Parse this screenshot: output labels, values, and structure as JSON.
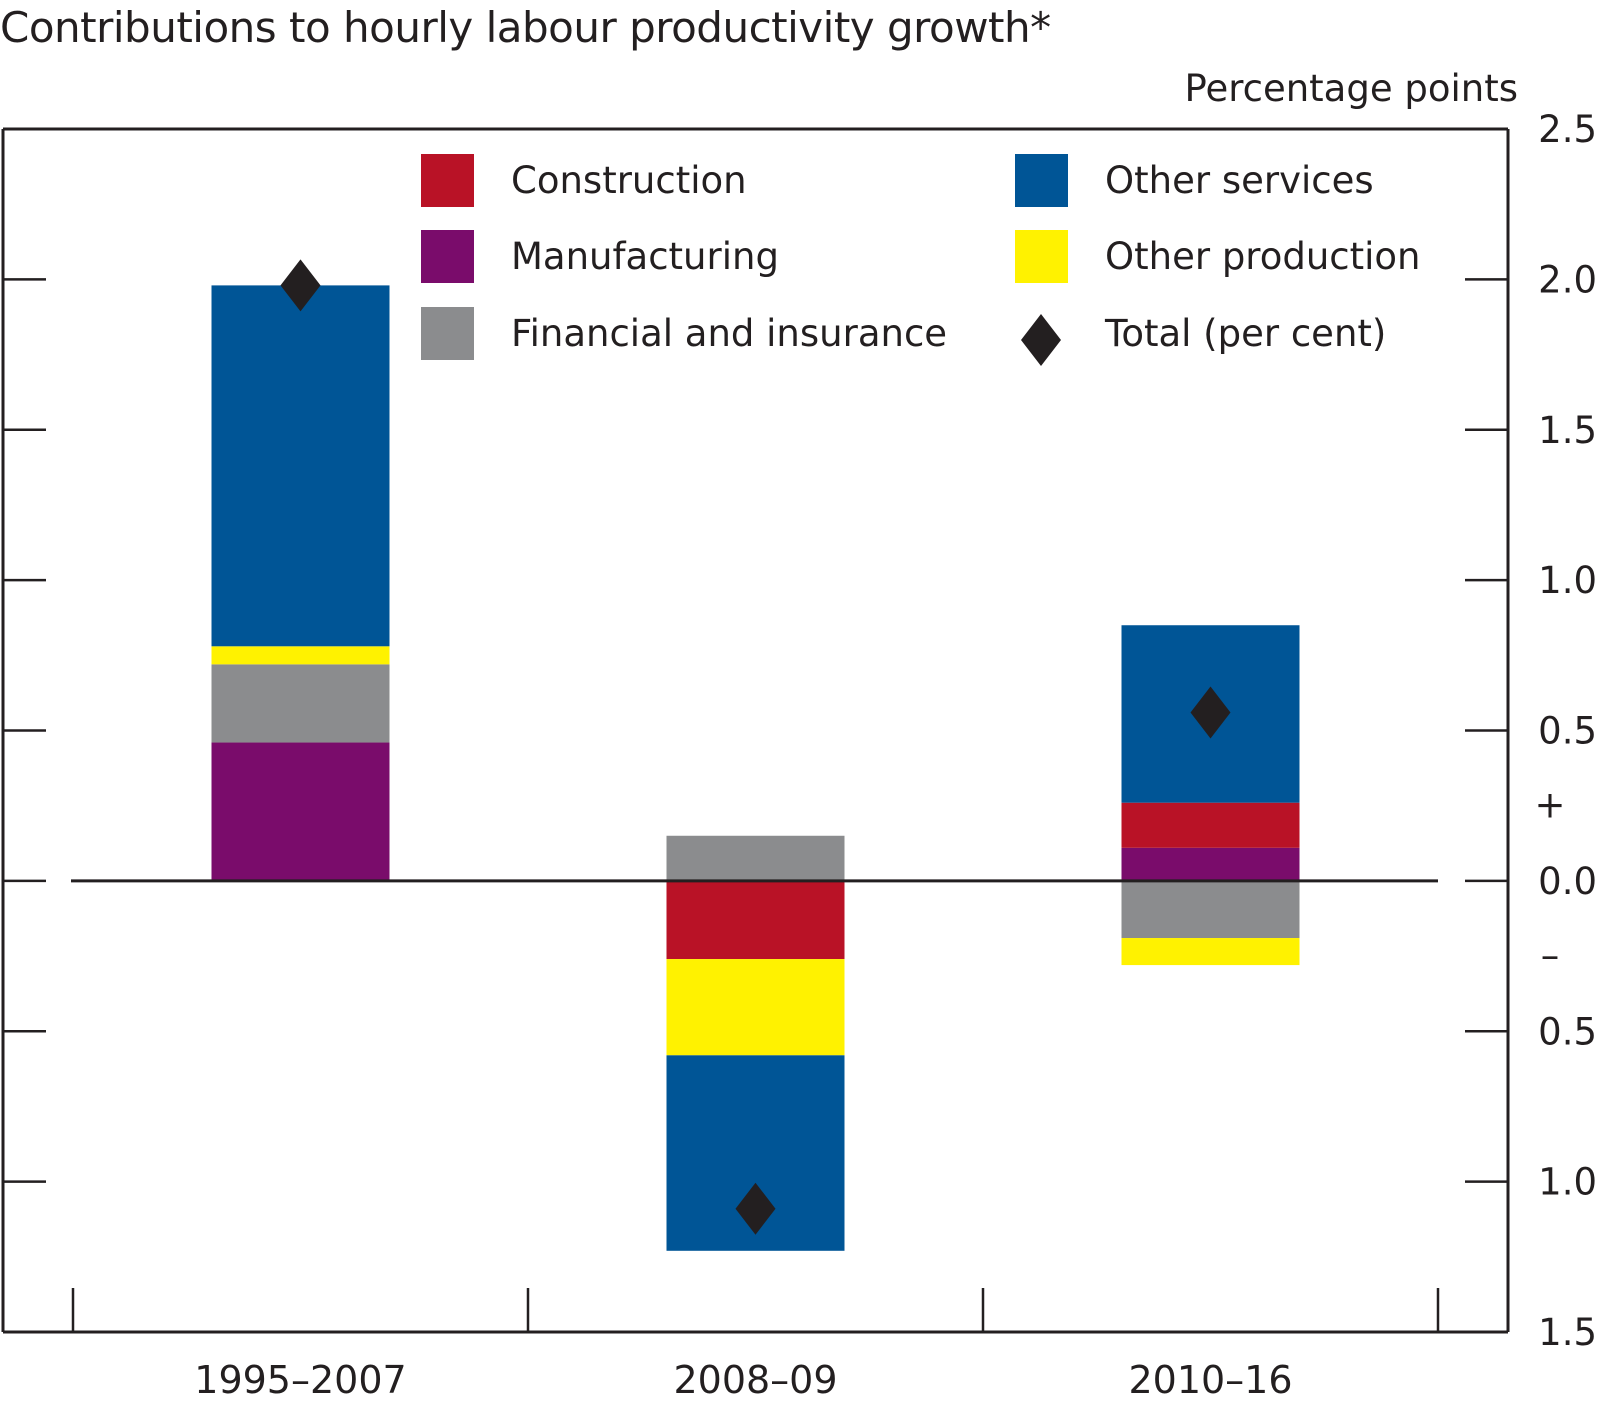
{
  "chart_data": {
    "type": "bar",
    "stacked": true,
    "title": "Contributions to hourly labour productivity growth*",
    "ylabel": "Percentage points",
    "xlabel": "",
    "ylim": [
      -1.5,
      2.5
    ],
    "yticks": [
      2.5,
      2.0,
      1.5,
      1.0,
      0.5,
      0.0,
      -0.5,
      -1.0,
      -1.5
    ],
    "ytick_labels": [
      "2.5",
      "2.0",
      "1.5",
      "1.0",
      "0.5",
      "0.0",
      "0.5",
      "1.0",
      "1.5"
    ],
    "sign_markers": {
      "positive": "+",
      "negative": "–"
    },
    "grid": false,
    "legend_position": "top",
    "categories": [
      "1995–2007",
      "2008–09",
      "2010–16"
    ],
    "series": [
      {
        "name": "Construction",
        "color": "#b91226",
        "values": [
          0.0,
          -0.26,
          0.15
        ]
      },
      {
        "name": "Manufacturing",
        "color": "#7a0c6b",
        "values": [
          0.46,
          0.0,
          0.11
        ]
      },
      {
        "name": "Financial and insurance",
        "color": "#8b8c8e",
        "values": [
          0.26,
          0.15,
          -0.19
        ]
      },
      {
        "name": "Other services",
        "color": "#005596",
        "values": [
          1.2,
          -0.65,
          0.59
        ]
      },
      {
        "name": "Other production",
        "color": "#fff200",
        "values": [
          0.06,
          -0.32,
          -0.09
        ]
      }
    ],
    "stack_order_positive": [
      "Manufacturing",
      "Construction",
      "Financial and insurance",
      "Other production",
      "Other services"
    ],
    "stack_order_negative": [
      "Construction",
      "Financial and insurance",
      "Other production",
      "Other services"
    ],
    "total": {
      "name": "Total (per cent)",
      "color": "#231f20",
      "marker": "diamond",
      "values": [
        1.98,
        -1.09,
        0.56
      ]
    },
    "legend": [
      {
        "label": "Construction",
        "type": "swatch",
        "color": "#b91226"
      },
      {
        "label": "Manufacturing",
        "type": "swatch",
        "color": "#7a0c6b"
      },
      {
        "label": "Financial and insurance",
        "type": "swatch",
        "color": "#8b8c8e"
      },
      {
        "label": "Other services",
        "type": "swatch",
        "color": "#005596"
      },
      {
        "label": "Other production",
        "type": "swatch",
        "color": "#fff200"
      },
      {
        "label": "Total (per cent)",
        "type": "diamond",
        "color": "#231f20"
      }
    ]
  }
}
